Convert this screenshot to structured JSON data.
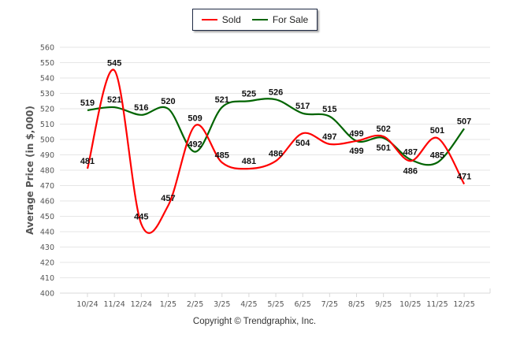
{
  "chart_data": {
    "type": "line",
    "title": "",
    "xlabel": "",
    "ylabel": "Average Price (in $,000)",
    "ylim": [
      400,
      560
    ],
    "yticks": [
      400,
      410,
      420,
      430,
      440,
      450,
      460,
      470,
      480,
      490,
      500,
      510,
      520,
      530,
      540,
      550,
      560
    ],
    "grid": true,
    "legend_position": "top-center",
    "categories": [
      "10/24",
      "11/24",
      "12/24",
      "1/25",
      "2/25",
      "3/25",
      "4/25",
      "5/25",
      "6/25",
      "7/25",
      "8/25",
      "9/25",
      "10/25",
      "11/25",
      "12/25"
    ],
    "series": [
      {
        "name": "Sold",
        "color": "#ff0000",
        "values": [
          481,
          545,
          445,
          457,
          509,
          485,
          481,
          486,
          504,
          497,
          499,
          502,
          486,
          501,
          471
        ]
      },
      {
        "name": "For Sale",
        "color": "#006400",
        "values": [
          519,
          521,
          516,
          520,
          492,
          521,
          525,
          526,
          517,
          515,
          499,
          501,
          487,
          485,
          507
        ]
      }
    ]
  },
  "legend": {
    "items": [
      "Sold",
      "For Sale"
    ]
  },
  "footer": {
    "copyright": "Copyright © Trendgraphix, Inc."
  }
}
